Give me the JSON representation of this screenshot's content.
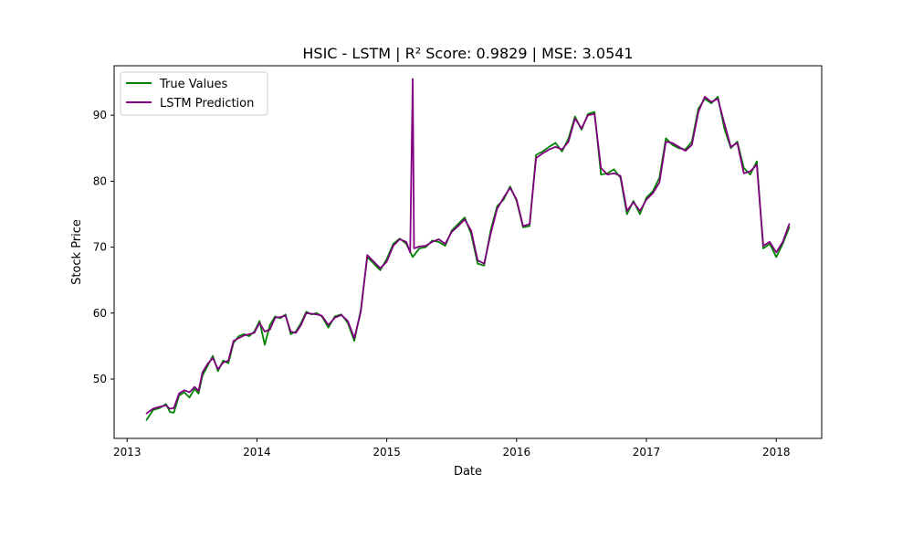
{
  "chart_data": {
    "type": "line",
    "title": "HSIC - LSTM | R² Score: 0.9829 | MSE: 3.0541",
    "xlabel": "Date",
    "ylabel": "Stock Price",
    "x_ticks": [
      "2013",
      "2014",
      "2015",
      "2016",
      "2017",
      "2018"
    ],
    "y_ticks": [
      "50",
      "60",
      "70",
      "80",
      "90"
    ],
    "xlim": [
      2012.9,
      2018.35
    ],
    "ylim": [
      41.0,
      97.5
    ],
    "grid": false,
    "legend_position": "upper-left",
    "series": [
      {
        "name": "True Values",
        "color": "#008000",
        "x": [
          2013.15,
          2013.2,
          2013.25,
          2013.3,
          2013.33,
          2013.36,
          2013.4,
          2013.44,
          2013.48,
          2013.52,
          2013.55,
          2013.58,
          2013.62,
          2013.66,
          2013.7,
          2013.74,
          2013.78,
          2013.82,
          2013.86,
          2013.9,
          2013.94,
          2013.98,
          2014.02,
          2014.06,
          2014.1,
          2014.14,
          2014.18,
          2014.22,
          2014.26,
          2014.3,
          2014.34,
          2014.38,
          2014.42,
          2014.46,
          2014.5,
          2014.55,
          2014.6,
          2014.65,
          2014.7,
          2014.75,
          2014.8,
          2014.85,
          2014.9,
          2014.95,
          2015.0,
          2015.05,
          2015.1,
          2015.15,
          2015.2,
          2015.25,
          2015.3,
          2015.35,
          2015.4,
          2015.45,
          2015.5,
          2015.55,
          2015.6,
          2015.65,
          2015.7,
          2015.75,
          2015.8,
          2015.85,
          2015.9,
          2015.95,
          2016.0,
          2016.05,
          2016.1,
          2016.15,
          2016.2,
          2016.25,
          2016.3,
          2016.35,
          2016.4,
          2016.45,
          2016.5,
          2016.55,
          2016.6,
          2016.65,
          2016.7,
          2016.75,
          2016.8,
          2016.85,
          2016.9,
          2016.95,
          2017.0,
          2017.05,
          2017.1,
          2017.15,
          2017.2,
          2017.25,
          2017.3,
          2017.35,
          2017.4,
          2017.45,
          2017.5,
          2017.55,
          2017.6,
          2017.65,
          2017.7,
          2017.75,
          2017.8,
          2017.85,
          2017.9,
          2017.95,
          2018.0,
          2018.05,
          2018.1
        ],
        "values": [
          43.8,
          45.3,
          45.6,
          46.2,
          45.0,
          44.9,
          47.5,
          48.0,
          47.2,
          48.5,
          47.8,
          50.5,
          52.0,
          53.5,
          51.2,
          52.8,
          52.4,
          55.5,
          56.5,
          56.8,
          56.5,
          57.2,
          58.8,
          55.2,
          58.2,
          59.5,
          59.2,
          59.8,
          56.8,
          57.2,
          58.5,
          60.2,
          59.8,
          60.0,
          59.5,
          57.8,
          59.5,
          59.8,
          58.5,
          55.8,
          60.5,
          68.5,
          67.5,
          66.5,
          68.2,
          70.5,
          71.3,
          70.5,
          68.5,
          69.8,
          70.0,
          71.0,
          70.8,
          70.2,
          72.5,
          73.5,
          74.5,
          72.0,
          67.5,
          67.2,
          72.5,
          76.2,
          77.2,
          79.2,
          77.0,
          73.0,
          73.2,
          84.0,
          84.5,
          85.2,
          85.8,
          84.5,
          86.5,
          89.8,
          87.8,
          90.2,
          90.5,
          81.0,
          81.2,
          81.8,
          80.5,
          75.0,
          77.0,
          75.0,
          77.5,
          78.5,
          80.5,
          86.5,
          85.5,
          85.0,
          84.8,
          86.0,
          91.0,
          92.5,
          91.8,
          92.8,
          88.0,
          85.0,
          86.0,
          82.0,
          81.0,
          83.0,
          69.8,
          70.5,
          68.5,
          70.5,
          73.0
        ]
      },
      {
        "name": "LSTM Prediction",
        "color": "#800080",
        "x": [
          2013.15,
          2013.2,
          2013.25,
          2013.3,
          2013.33,
          2013.36,
          2013.4,
          2013.44,
          2013.48,
          2013.52,
          2013.55,
          2013.58,
          2013.62,
          2013.66,
          2013.7,
          2013.74,
          2013.78,
          2013.82,
          2013.86,
          2013.9,
          2013.94,
          2013.98,
          2014.02,
          2014.06,
          2014.1,
          2014.14,
          2014.18,
          2014.22,
          2014.26,
          2014.3,
          2014.34,
          2014.38,
          2014.42,
          2014.46,
          2014.5,
          2014.55,
          2014.6,
          2014.65,
          2014.7,
          2014.75,
          2014.8,
          2014.85,
          2014.9,
          2014.95,
          2015.0,
          2015.05,
          2015.1,
          2015.15,
          2015.18,
          2015.2,
          2015.21,
          2015.25,
          2015.3,
          2015.35,
          2015.4,
          2015.45,
          2015.5,
          2015.55,
          2015.6,
          2015.65,
          2015.7,
          2015.75,
          2015.8,
          2015.85,
          2015.9,
          2015.95,
          2016.0,
          2016.05,
          2016.1,
          2016.15,
          2016.2,
          2016.25,
          2016.3,
          2016.35,
          2016.4,
          2016.45,
          2016.5,
          2016.55,
          2016.6,
          2016.65,
          2016.7,
          2016.75,
          2016.8,
          2016.85,
          2016.9,
          2016.95,
          2017.0,
          2017.05,
          2017.1,
          2017.15,
          2017.2,
          2017.25,
          2017.3,
          2017.35,
          2017.4,
          2017.45,
          2017.5,
          2017.55,
          2017.6,
          2017.65,
          2017.7,
          2017.75,
          2017.8,
          2017.85,
          2017.9,
          2017.95,
          2018.0,
          2018.05,
          2018.1
        ],
        "values": [
          44.8,
          45.5,
          45.8,
          46.0,
          45.5,
          45.6,
          47.8,
          48.3,
          48.0,
          48.8,
          48.2,
          51.0,
          52.3,
          53.2,
          51.5,
          52.5,
          52.8,
          55.8,
          56.2,
          56.6,
          56.8,
          57.0,
          58.5,
          57.2,
          57.5,
          59.3,
          59.4,
          59.6,
          57.2,
          57.0,
          58.2,
          60.0,
          59.9,
          59.8,
          59.6,
          58.2,
          59.3,
          59.7,
          58.8,
          56.2,
          60.2,
          68.8,
          67.8,
          66.8,
          67.8,
          70.2,
          71.2,
          70.8,
          69.2,
          95.5,
          69.8,
          70.1,
          70.2,
          70.8,
          71.2,
          70.5,
          72.3,
          73.2,
          74.2,
          72.5,
          68.0,
          67.5,
          72.0,
          75.8,
          77.5,
          79.0,
          77.2,
          73.2,
          73.5,
          83.5,
          84.2,
          84.8,
          85.2,
          84.8,
          86.0,
          89.5,
          88.0,
          90.0,
          90.2,
          82.0,
          81.0,
          81.2,
          80.8,
          75.5,
          76.8,
          75.5,
          77.2,
          78.2,
          79.8,
          86.0,
          85.8,
          85.2,
          84.6,
          85.5,
          90.5,
          92.8,
          92.0,
          92.5,
          88.8,
          85.2,
          85.8,
          81.2,
          81.5,
          82.5,
          70.2,
          70.8,
          69.2,
          70.8,
          73.5
        ]
      }
    ]
  }
}
